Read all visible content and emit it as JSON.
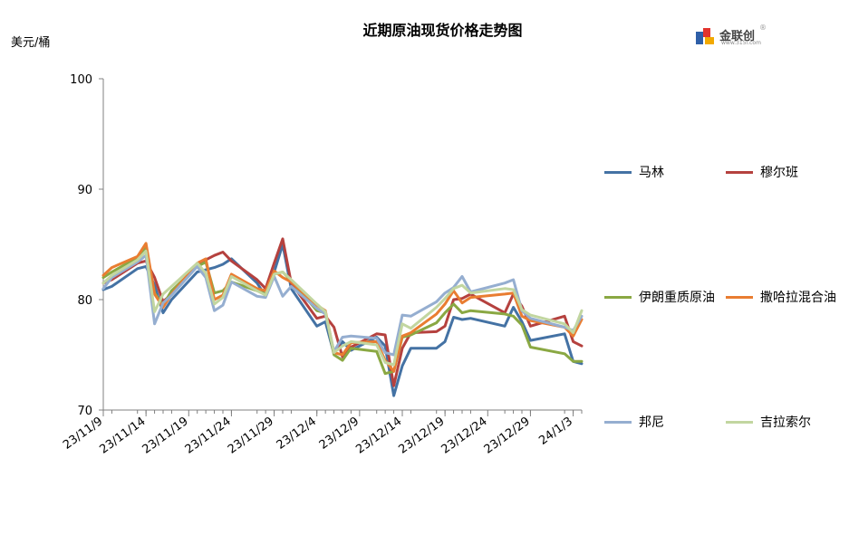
{
  "chart_data": {
    "type": "line",
    "title": "近期原油现货价格走势图",
    "ylabel": "美元/桶",
    "ylim": [
      70,
      100
    ],
    "yticks": [
      70,
      80,
      90,
      100
    ],
    "xlim": [
      "2023-11-09",
      "2024-01-04"
    ],
    "xticks": [
      "23/11/9",
      "23/11/14",
      "23/11/19",
      "23/11/24",
      "23/11/29",
      "23/12/4",
      "23/12/9",
      "23/12/14",
      "23/12/19",
      "23/12/24",
      "23/12/29",
      "24/1/3"
    ],
    "xtick_dates": [
      "2023-11-09",
      "2023-11-14",
      "2023-11-19",
      "2023-11-24",
      "2023-11-29",
      "2023-12-04",
      "2023-12-09",
      "2023-12-14",
      "2023-12-19",
      "2023-12-24",
      "2023-12-29",
      "2024-01-03"
    ],
    "x": [
      "2023-11-09",
      "2023-11-10",
      "2023-11-13",
      "2023-11-14",
      "2023-11-15",
      "2023-11-16",
      "2023-11-17",
      "2023-11-20",
      "2023-11-21",
      "2023-11-22",
      "2023-11-23",
      "2023-11-24",
      "2023-11-27",
      "2023-11-28",
      "2023-11-29",
      "2023-11-30",
      "2023-12-01",
      "2023-12-04",
      "2023-12-05",
      "2023-12-06",
      "2023-12-07",
      "2023-12-08",
      "2023-12-11",
      "2023-12-12",
      "2023-12-13",
      "2023-12-14",
      "2023-12-15",
      "2023-12-18",
      "2023-12-19",
      "2023-12-20",
      "2023-12-21",
      "2023-12-22",
      "2023-12-26",
      "2023-12-27",
      "2023-12-28",
      "2023-12-29",
      "2024-01-02",
      "2024-01-03",
      "2024-01-04"
    ],
    "grid": false,
    "legend_position": "right",
    "series": [
      {
        "name": "马林",
        "color": "#4472a4",
        "values": [
          80.9,
          81.2,
          82.8,
          83.0,
          81.3,
          78.8,
          80.0,
          82.5,
          82.7,
          82.9,
          83.2,
          83.7,
          81.5,
          80.3,
          82.5,
          85.0,
          81.0,
          77.6,
          78.0,
          75.1,
          76.2,
          75.4,
          76.6,
          75.8,
          71.3,
          74.0,
          75.6,
          75.6,
          76.2,
          78.4,
          78.2,
          78.3,
          77.6,
          79.3,
          78.0,
          76.3,
          76.9,
          74.4,
          74.2
        ]
      },
      {
        "name": "穆尔班",
        "color": "#b5413e",
        "values": [
          81.5,
          81.8,
          83.3,
          83.5,
          82.0,
          79.8,
          80.5,
          83.2,
          83.6,
          84.0,
          84.3,
          83.5,
          81.8,
          81.0,
          83.3,
          85.5,
          81.5,
          78.3,
          78.5,
          77.5,
          74.8,
          75.7,
          76.9,
          76.8,
          72.2,
          75.6,
          77.0,
          77.1,
          77.6,
          80.0,
          80.1,
          80.5,
          78.8,
          80.5,
          79.4,
          77.6,
          78.5,
          76.2,
          75.8
        ]
      },
      {
        "name": "伊朗重质原油",
        "color": "#8aa843",
        "values": [
          82.0,
          82.5,
          83.8,
          84.7,
          80.6,
          79.5,
          80.8,
          83.0,
          83.4,
          80.6,
          80.8,
          81.6,
          80.8,
          80.5,
          82.3,
          82.5,
          81.7,
          79.0,
          78.8,
          75.0,
          74.5,
          75.6,
          75.3,
          73.3,
          73.5,
          76.6,
          76.8,
          77.9,
          78.8,
          79.6,
          78.8,
          79.0,
          78.7,
          78.5,
          77.7,
          75.7,
          75.1,
          74.4,
          74.4
        ]
      },
      {
        "name": "撒哈拉混合油",
        "color": "#e97d31",
        "values": [
          82.2,
          82.9,
          83.9,
          85.1,
          80.5,
          79.3,
          80.5,
          83.3,
          83.7,
          80.0,
          80.4,
          82.3,
          81.0,
          80.8,
          82.6,
          82.0,
          81.6,
          79.5,
          79.0,
          75.2,
          75.0,
          76.1,
          76.2,
          74.5,
          73.5,
          76.7,
          77.0,
          78.7,
          79.6,
          80.8,
          79.7,
          80.2,
          80.5,
          80.6,
          78.5,
          78.1,
          77.5,
          76.7,
          78.2
        ]
      },
      {
        "name": "邦尼",
        "color": "#95aed0",
        "values": [
          81.0,
          82.0,
          83.4,
          84.0,
          77.8,
          79.7,
          80.4,
          83.0,
          82.0,
          79.0,
          79.5,
          81.6,
          80.3,
          80.2,
          82.1,
          80.3,
          81.2,
          79.2,
          78.7,
          75.3,
          76.6,
          76.7,
          76.5,
          75.2,
          75.0,
          78.6,
          78.5,
          79.8,
          80.6,
          81.1,
          82.1,
          80.7,
          81.5,
          81.8,
          79.0,
          78.3,
          77.5,
          77.2,
          78.5
        ]
      },
      {
        "name": "吉拉索尔",
        "color": "#c2d6a0",
        "values": [
          81.5,
          82.2,
          83.6,
          84.4,
          78.9,
          80.5,
          81.2,
          83.3,
          82.4,
          79.6,
          80.2,
          82.1,
          80.8,
          80.4,
          82.3,
          82.5,
          81.8,
          79.6,
          78.9,
          75.2,
          75.8,
          76.2,
          75.9,
          74.3,
          74.1,
          77.8,
          77.4,
          79.3,
          80.1,
          81.0,
          81.3,
          80.6,
          81.0,
          80.9,
          79.1,
          78.6,
          77.8,
          77.0,
          79.0
        ]
      }
    ]
  },
  "logo": {
    "text": "金联创",
    "sub": "www.315i.com",
    "reg": "®"
  }
}
